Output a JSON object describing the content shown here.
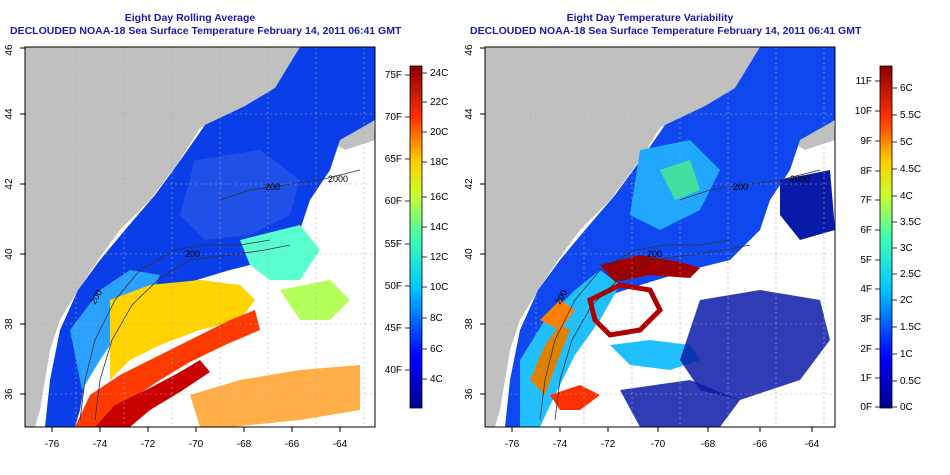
{
  "left_panel": {
    "title_line1": "Eight Day Rolling Average",
    "title_line2": "DECLOUDED NOAA-18 Sea Surface Temperature February 14, 2011 06:41 GMT",
    "x_ticks": [
      "-76",
      "-74",
      "-72",
      "-70",
      "-68",
      "-66",
      "-64"
    ],
    "y_ticks": [
      "36",
      "38",
      "40",
      "42",
      "44",
      "46"
    ],
    "contour_labels": [
      "200",
      "200",
      "2000",
      "200"
    ],
    "colorbar_f": [
      "75F",
      "70F",
      "65F",
      "60F",
      "55F",
      "50F",
      "45F",
      "40F"
    ],
    "colorbar_c": [
      "24C",
      "22C",
      "20C",
      "18C",
      "16C",
      "14C",
      "12C",
      "10C",
      "8C",
      "6C",
      "4C"
    ]
  },
  "right_panel": {
    "title_line1": "Eight Day Temperature Variability",
    "title_line2": "DECLOUDED NOAA-18 Sea Surface Temperature February 14, 2011 06:41 GMT",
    "x_ticks": [
      "-76",
      "-74",
      "-72",
      "-70",
      "-68",
      "-66",
      "-64"
    ],
    "y_ticks": [
      "36",
      "38",
      "40",
      "42",
      "44",
      "46"
    ],
    "contour_labels": [
      "200",
      "200",
      "2000",
      "200"
    ],
    "colorbar_f": [
      "11F",
      "10F",
      "9F",
      "8F",
      "7F",
      "6F",
      "5F",
      "4F",
      "3F",
      "2F",
      "1F",
      "0F"
    ],
    "colorbar_c": [
      "6C",
      "5.5C",
      "5C",
      "4.5C",
      "4C",
      "3.5C",
      "3C",
      "2.5C",
      "2C",
      "1.5C",
      "1C",
      "0.5C",
      "0C"
    ]
  },
  "colors": {
    "title": "#1a1aa6",
    "land": "#c0c0c0",
    "ocean_missing": "#ffffff"
  }
}
